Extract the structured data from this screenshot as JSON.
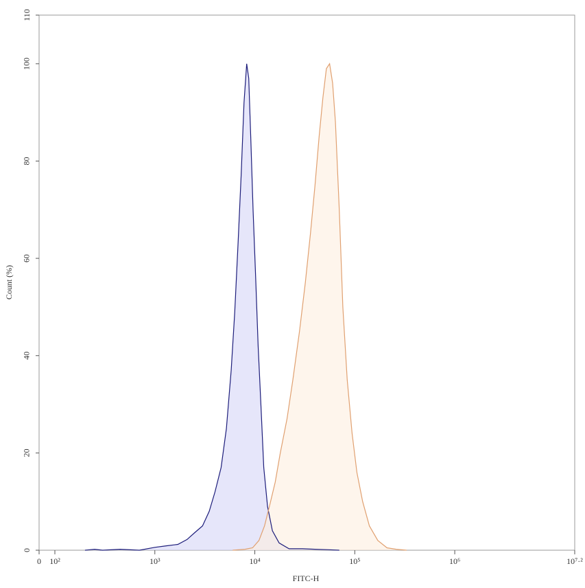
{
  "chart_data": {
    "type": "histogram-overlay",
    "x_label": "FITC-H",
    "y_label": "Count (%)",
    "xscale": "symlog",
    "xlim": [
      0,
      15848932
    ],
    "ylim": [
      0,
      110
    ],
    "xticks": [
      0,
      {
        "value": 100,
        "label": "10²"
      },
      {
        "value": 1000,
        "label": "10³"
      },
      {
        "value": 10000,
        "label": "10⁴"
      },
      {
        "value": 100000,
        "label": "10⁵"
      },
      {
        "value": 1000000,
        "label": "10⁶"
      },
      {
        "value": 15848932,
        "label": "10⁷·²"
      }
    ],
    "yticks": [
      0,
      20,
      40,
      60,
      80,
      100,
      110
    ],
    "series": [
      {
        "color": "#1c1c7a",
        "fill": "#d6d6f7",
        "x": [
          200,
          250,
          300,
          450,
          700,
          1000,
          1300,
          1700,
          2100,
          2500,
          3000,
          3500,
          4000,
          4600,
          5200,
          5800,
          6300,
          6800,
          7300,
          7800,
          8300,
          8700,
          9100,
          9600,
          10200,
          10800,
          11500,
          12300,
          13400,
          15000,
          17500,
          22000,
          30000,
          40000,
          55000,
          70000
        ],
        "values": [
          0,
          0.2,
          0,
          0.2,
          0,
          0.6,
          0.9,
          1.2,
          2.2,
          3.6,
          5,
          8,
          12,
          17,
          25,
          37,
          49,
          63,
          77,
          92,
          100,
          97,
          85,
          70,
          56,
          42,
          30,
          17,
          9,
          4,
          1.5,
          0.3,
          0.3,
          0.2,
          0.1,
          0
        ]
      },
      {
        "color": "#e0a070",
        "fill": "#fdeedf",
        "x": [
          6000,
          8000,
          9500,
          11000,
          12500,
          14000,
          16000,
          18000,
          21000,
          24000,
          28000,
          32000,
          36000,
          40000,
          44000,
          48000,
          52000,
          56000,
          60000,
          64000,
          70000,
          76000,
          84000,
          94000,
          105000,
          120000,
          140000,
          170000,
          210000,
          260000,
          330000
        ],
        "values": [
          0,
          0.2,
          0.5,
          2,
          5,
          9,
          14,
          20,
          27,
          35,
          45,
          55,
          65,
          75,
          85,
          93,
          99,
          100,
          96,
          88,
          70,
          50,
          35,
          24,
          16,
          10,
          5,
          2,
          0.5,
          0.2,
          0
        ]
      }
    ]
  }
}
